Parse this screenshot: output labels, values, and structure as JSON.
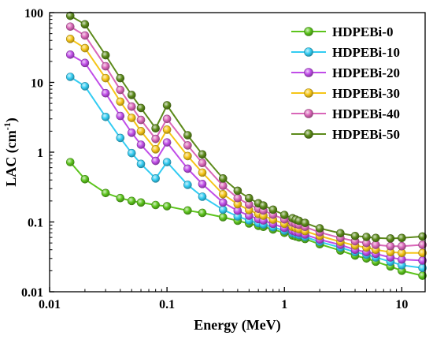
{
  "chart_data": {
    "type": "line",
    "xlabel": "Energy (MeV)",
    "ylabel_main": "LAC (cm",
    "ylabel_sup": "-1",
    "ylabel_close": ")",
    "x_scale": "log",
    "y_scale": "log",
    "xlim": [
      0.01,
      15.8
    ],
    "ylim": [
      0.01,
      100
    ],
    "x_ticks": [
      0.01,
      0.1,
      1,
      10
    ],
    "x_tick_labels": [
      "0.01",
      "0.1",
      "1",
      "10"
    ],
    "y_ticks": [
      0.01,
      0.1,
      1,
      10,
      100
    ],
    "y_tick_labels": [
      "0.01",
      "0.1",
      "1",
      "10",
      "100"
    ],
    "grid": false,
    "legend_position": "top-right",
    "x": [
      0.015,
      0.02,
      0.03,
      0.04,
      0.05,
      0.06,
      0.08,
      0.1,
      0.15,
      0.2,
      0.3,
      0.4,
      0.5,
      0.6,
      0.662,
      0.8,
      1.0,
      1.173,
      1.25,
      1.33,
      1.5,
      2,
      3,
      4,
      5,
      6,
      8,
      10,
      15
    ],
    "series": [
      {
        "name": "HDPEBi-0",
        "color": "#5cc41c",
        "values": [
          0.72,
          0.41,
          0.26,
          0.22,
          0.2,
          0.19,
          0.175,
          0.168,
          0.146,
          0.135,
          0.117,
          0.104,
          0.095,
          0.088,
          0.085,
          0.078,
          0.07,
          0.064,
          0.062,
          0.06,
          0.057,
          0.048,
          0.039,
          0.033,
          0.03,
          0.027,
          0.023,
          0.02,
          0.017
        ]
      },
      {
        "name": "HDPEBi-10",
        "color": "#33ccf2",
        "values": [
          12,
          8.8,
          3.2,
          1.6,
          0.97,
          0.68,
          0.42,
          0.72,
          0.34,
          0.23,
          0.15,
          0.12,
          0.105,
          0.096,
          0.092,
          0.084,
          0.075,
          0.069,
          0.067,
          0.065,
          0.061,
          0.052,
          0.043,
          0.037,
          0.034,
          0.031,
          0.027,
          0.024,
          0.022
        ]
      },
      {
        "name": "HDPEBi-20",
        "color": "#c04de8",
        "values": [
          25,
          19,
          7,
          3.3,
          1.9,
          1.28,
          0.75,
          1.38,
          0.58,
          0.35,
          0.19,
          0.145,
          0.123,
          0.11,
          0.105,
          0.094,
          0.082,
          0.075,
          0.072,
          0.07,
          0.066,
          0.056,
          0.047,
          0.04,
          0.037,
          0.035,
          0.031,
          0.029,
          0.028
        ]
      },
      {
        "name": "HDPEBi-30",
        "color": "#f5c518",
        "values": [
          42,
          31,
          11.5,
          5.3,
          3.1,
          2.0,
          1.1,
          2.1,
          0.88,
          0.51,
          0.25,
          0.18,
          0.148,
          0.13,
          0.123,
          0.108,
          0.094,
          0.085,
          0.082,
          0.079,
          0.074,
          0.063,
          0.052,
          0.046,
          0.043,
          0.04,
          0.037,
          0.036,
          0.036
        ]
      },
      {
        "name": "HDPEBi-40",
        "color": "#d966b8",
        "values": [
          63,
          47,
          17,
          7.8,
          4.5,
          2.9,
          1.55,
          3.0,
          1.25,
          0.7,
          0.33,
          0.22,
          0.178,
          0.155,
          0.146,
          0.127,
          0.109,
          0.098,
          0.094,
          0.091,
          0.085,
          0.071,
          0.059,
          0.053,
          0.05,
          0.047,
          0.045,
          0.045,
          0.047
        ]
      },
      {
        "name": "HDPEBi-50",
        "color": "#5c8a1a",
        "values": [
          90,
          68,
          24.5,
          11.5,
          6.6,
          4.3,
          2.2,
          4.7,
          1.75,
          0.93,
          0.42,
          0.28,
          0.22,
          0.185,
          0.172,
          0.15,
          0.126,
          0.113,
          0.108,
          0.104,
          0.097,
          0.081,
          0.069,
          0.063,
          0.061,
          0.059,
          0.058,
          0.059,
          0.062
        ]
      }
    ]
  }
}
